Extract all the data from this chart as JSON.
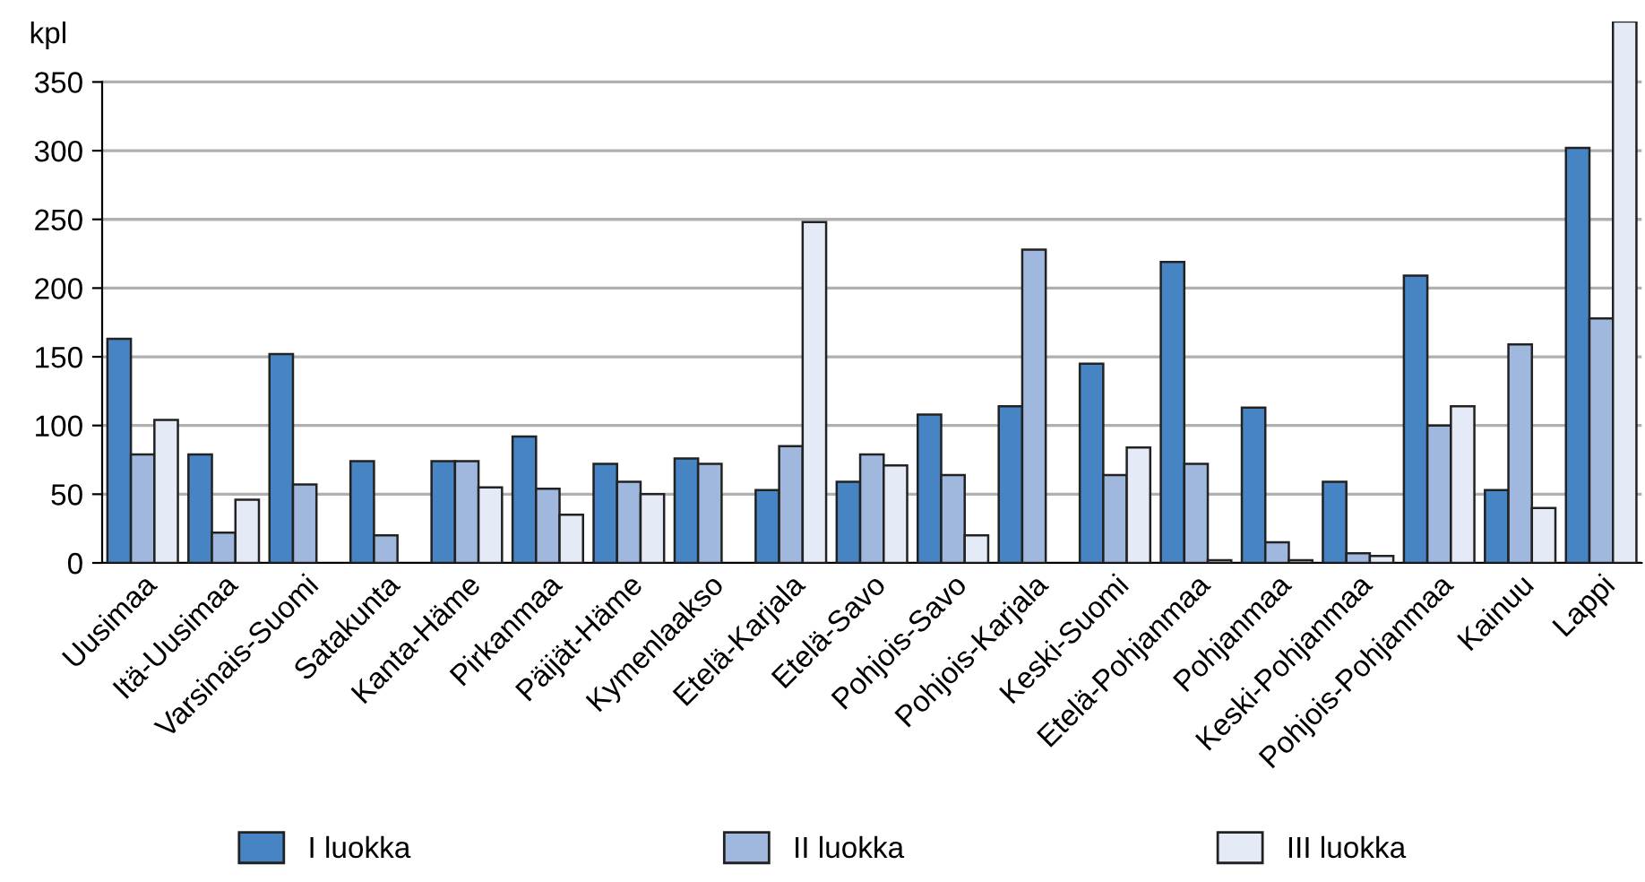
{
  "chart_data": {
    "type": "bar",
    "ylabel": "kpl",
    "categories": [
      "Uusimaa",
      "Itä-Uusimaa",
      "Varsinais-Suomi",
      "Satakunta",
      "Kanta-Häme",
      "Pirkanmaa",
      "Päijät-Häme",
      "Kymenlaakso",
      "Etelä-Karjala",
      "Etelä-Savo",
      "Pohjois-Savo",
      "Pohjois-Karjala",
      "Keski-Suomi",
      "Etelä-Pohjanmaa",
      "Pohjanmaa",
      "Keski-Pohjanmaa",
      "Pohjois-Pohjanmaa",
      "Kainuu",
      "Lappi"
    ],
    "series": [
      {
        "name": "I luokka",
        "color": "#4684c4",
        "values": [
          163,
          79,
          152,
          74,
          74,
          92,
          72,
          76,
          53,
          59,
          108,
          114,
          145,
          219,
          113,
          59,
          209,
          53,
          302
        ]
      },
      {
        "name": "II luokka",
        "color": "#a0b8de",
        "values": [
          79,
          22,
          57,
          20,
          74,
          54,
          59,
          72,
          85,
          79,
          64,
          228,
          64,
          72,
          15,
          7,
          100,
          159,
          178
        ]
      },
      {
        "name": "III luokka",
        "color": "#e4eaf6",
        "values": [
          104,
          46,
          null,
          null,
          55,
          35,
          50,
          null,
          248,
          71,
          20,
          null,
          84,
          2,
          2,
          5,
          114,
          40,
          394
        ]
      }
    ],
    "ylim": [
      0,
      394
    ],
    "yticks": [
      0,
      50,
      100,
      150,
      200,
      250,
      300,
      350
    ],
    "grid": "y",
    "legend": "bottom"
  }
}
